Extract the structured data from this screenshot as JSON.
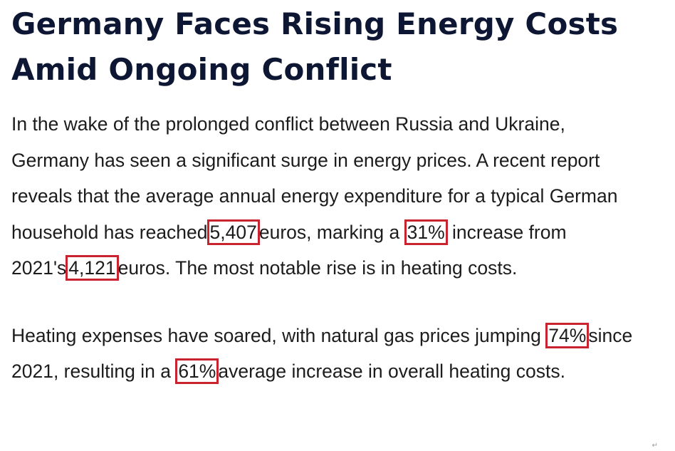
{
  "article": {
    "title_line1": "Germany Faces Rising Energy Costs",
    "title_line2": "Amid Ongoing Conflict",
    "p1": {
      "t1": "In the wake of the prolonged conflict between Russia and Ukraine, Germany has seen a significant surge in energy prices. A recent report reveals that the average annual energy expenditure for a typical German household has reached",
      "v1": "5,407",
      "t2": "euros, marking a",
      "v2": "31%",
      "t3": "increase from 2021's",
      "v3": "4,121",
      "t4": "euros. The most notable rise is in heating costs."
    },
    "p2": {
      "t1": "Heating expenses have soared, with natural gas prices jumping",
      "v1": "74%",
      "t2": "since 2021, resulting in a",
      "v2": "61%",
      "t3": "average increase in overall heating costs."
    },
    "paragraph_mark": "↵"
  },
  "colors": {
    "title": "#0d1733",
    "body_text": "#1c1c1c",
    "highlight_border": "#c8232f"
  }
}
